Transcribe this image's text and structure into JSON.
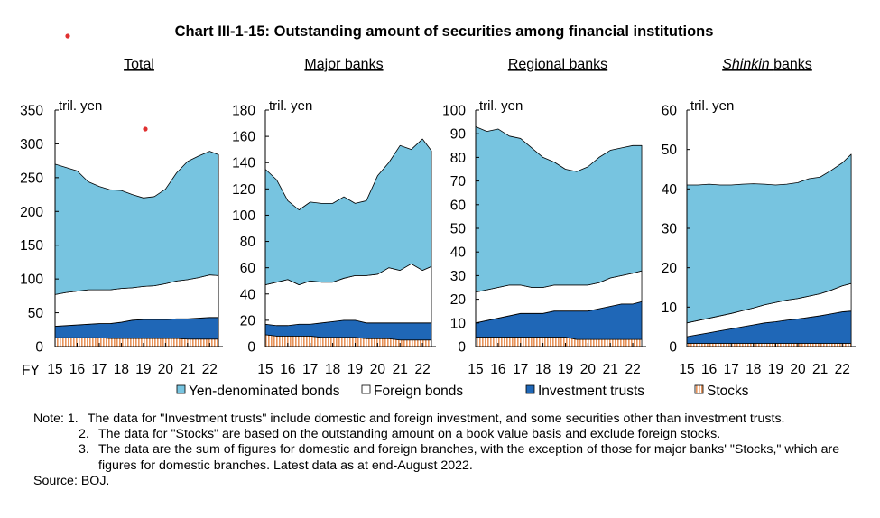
{
  "title": "Chart III-1-15: Outstanding amount of securities among financial institutions",
  "fy_label": "FY",
  "legend": [
    {
      "key": "yen",
      "label": "Yen-denominated bonds",
      "color": "#77c4e0"
    },
    {
      "key": "foreign",
      "label": "Foreign bonds",
      "color": "#ffffff"
    },
    {
      "key": "trusts",
      "label": "Investment trusts",
      "color": "#1f67b7"
    },
    {
      "key": "stocks",
      "label": "Stocks",
      "color": "#f6cfa8"
    }
  ],
  "notes": {
    "lead": "Note: ",
    "items": [
      {
        "num": "1.",
        "text": "The data for \"Investment trusts\" include domestic and foreign investment, and some securities other than investment trusts."
      },
      {
        "num": "2.",
        "text": "The data for \"Stocks\" are based on the outstanding amount on a book value basis and exclude foreign stocks."
      },
      {
        "num": "3.",
        "text": "The data are the sum of figures for domestic and foreign branches, with the exception of those for major banks' \"Stocks,\" which are figures for domestic branches. Latest data as at end-August 2022."
      }
    ],
    "source": "Source: BOJ."
  },
  "chart_data": [
    {
      "type": "area",
      "stacked": true,
      "title": "Total",
      "title_italic_prefix": "",
      "unit": "tril. yen",
      "ylim": [
        0,
        350
      ],
      "yticks": [
        0,
        50,
        100,
        150,
        200,
        250,
        300,
        350
      ],
      "x_ticks": [
        "15",
        "16",
        "17",
        "18",
        "19",
        "20",
        "21",
        "22"
      ],
      "x": [
        "15",
        "15.5",
        "16",
        "16.5",
        "17",
        "17.5",
        "18",
        "18.5",
        "19",
        "19.5",
        "20",
        "20.5",
        "21",
        "21.5",
        "22",
        "22.4"
      ],
      "series": [
        {
          "name": "Stocks",
          "values": [
            13,
            13,
            13,
            13,
            13,
            12,
            12,
            12,
            12,
            12,
            12,
            12,
            11,
            11,
            11,
            11
          ]
        },
        {
          "name": "Investment trusts",
          "values": [
            17,
            18,
            19,
            20,
            21,
            22,
            24,
            27,
            28,
            28,
            28,
            29,
            30,
            31,
            32,
            32
          ]
        },
        {
          "name": "Foreign bonds",
          "values": [
            47,
            49,
            50,
            51,
            50,
            50,
            50,
            48,
            49,
            50,
            53,
            56,
            58,
            60,
            63,
            62
          ]
        },
        {
          "name": "Yen-denominated bonds",
          "values": [
            193,
            185,
            178,
            160,
            153,
            148,
            145,
            138,
            131,
            132,
            140,
            160,
            175,
            180,
            183,
            179
          ]
        }
      ]
    },
    {
      "type": "area",
      "stacked": true,
      "title": "Major banks",
      "title_italic_prefix": "",
      "unit": "tril. yen",
      "ylim": [
        0,
        180
      ],
      "yticks": [
        0,
        20,
        40,
        60,
        80,
        100,
        120,
        140,
        160,
        180
      ],
      "x_ticks": [
        "15",
        "16",
        "17",
        "18",
        "19",
        "20",
        "21",
        "22"
      ],
      "x": [
        "15",
        "15.5",
        "16",
        "16.5",
        "17",
        "17.5",
        "18",
        "18.5",
        "19",
        "19.5",
        "20",
        "20.5",
        "21",
        "21.5",
        "22",
        "22.4"
      ],
      "series": [
        {
          "name": "Stocks",
          "values": [
            9,
            8,
            8,
            8,
            8,
            7,
            7,
            7,
            7,
            6,
            6,
            6,
            5,
            5,
            5,
            5
          ]
        },
        {
          "name": "Investment trusts",
          "values": [
            8,
            8,
            8,
            9,
            9,
            11,
            12,
            13,
            13,
            12,
            12,
            12,
            13,
            13,
            13,
            13
          ]
        },
        {
          "name": "Foreign bonds",
          "values": [
            30,
            33,
            35,
            30,
            33,
            31,
            30,
            32,
            34,
            36,
            37,
            42,
            40,
            45,
            40,
            43
          ]
        },
        {
          "name": "Yen-denominated bonds",
          "values": [
            88,
            78,
            60,
            57,
            60,
            60,
            60,
            62,
            55,
            57,
            75,
            80,
            95,
            87,
            100,
            88
          ]
        }
      ]
    },
    {
      "type": "area",
      "stacked": true,
      "title": "Regional banks",
      "title_italic_prefix": "",
      "unit": "tril. yen",
      "ylim": [
        0,
        100
      ],
      "yticks": [
        0,
        10,
        20,
        30,
        40,
        50,
        60,
        70,
        80,
        90,
        100
      ],
      "x_ticks": [
        "15",
        "16",
        "17",
        "18",
        "19",
        "20",
        "21",
        "22"
      ],
      "x": [
        "15",
        "15.5",
        "16",
        "16.5",
        "17",
        "17.5",
        "18",
        "18.5",
        "19",
        "19.5",
        "20",
        "20.5",
        "21",
        "21.5",
        "22",
        "22.4"
      ],
      "series": [
        {
          "name": "Stocks",
          "values": [
            4,
            4,
            4,
            4,
            4,
            4,
            4,
            4,
            4,
            3,
            3,
            3,
            3,
            3,
            3,
            3
          ]
        },
        {
          "name": "Investment trusts",
          "values": [
            6,
            7,
            8,
            9,
            10,
            10,
            10,
            11,
            11,
            12,
            12,
            13,
            14,
            15,
            15,
            16
          ]
        },
        {
          "name": "Foreign bonds",
          "values": [
            13,
            13,
            13,
            13,
            12,
            11,
            11,
            11,
            11,
            11,
            11,
            11,
            12,
            12,
            13,
            13
          ]
        },
        {
          "name": "Yen-denominated bonds",
          "values": [
            70,
            67,
            67,
            63,
            62,
            59,
            55,
            52,
            49,
            48,
            50,
            53,
            54,
            54,
            54,
            53
          ]
        }
      ]
    },
    {
      "type": "area",
      "stacked": true,
      "title": "banks",
      "title_italic_prefix": "Shinkin",
      "unit": "tril. yen",
      "ylim": [
        0,
        60
      ],
      "yticks": [
        0,
        10,
        20,
        30,
        40,
        50,
        60
      ],
      "x_ticks": [
        "15",
        "16",
        "17",
        "18",
        "19",
        "20",
        "21",
        "22"
      ],
      "x": [
        "15",
        "15.5",
        "16",
        "16.5",
        "17",
        "17.5",
        "18",
        "18.5",
        "19",
        "19.5",
        "20",
        "20.5",
        "21",
        "21.5",
        "22",
        "22.4"
      ],
      "series": [
        {
          "name": "Stocks",
          "values": [
            0.8,
            0.8,
            0.8,
            0.8,
            0.8,
            0.8,
            0.8,
            0.8,
            0.8,
            0.8,
            0.8,
            0.8,
            0.8,
            0.8,
            0.8,
            0.8
          ]
        },
        {
          "name": "Investment trusts",
          "values": [
            1.7,
            2.2,
            2.7,
            3.2,
            3.7,
            4.2,
            4.7,
            5.2,
            5.5,
            5.9,
            6.2,
            6.6,
            7.0,
            7.5,
            8.0,
            8.2
          ]
        },
        {
          "name": "Foreign bonds",
          "values": [
            3.5,
            3.6,
            3.7,
            3.8,
            3.9,
            4.1,
            4.3,
            4.6,
            4.9,
            5.1,
            5.2,
            5.4,
            5.6,
            6.0,
            6.6,
            7.0
          ]
        },
        {
          "name": "Yen-denominated bonds",
          "values": [
            35,
            34.4,
            34,
            33.2,
            32.6,
            32.1,
            31.5,
            30.6,
            29.8,
            29.4,
            29.4,
            29.8,
            29.6,
            30.4,
            31.2,
            32.8
          ]
        }
      ]
    }
  ]
}
